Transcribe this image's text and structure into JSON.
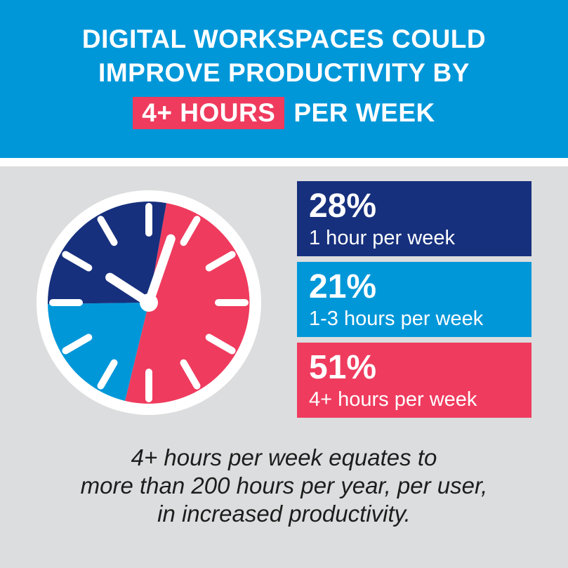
{
  "header": {
    "line1": "DIGITAL WORKSPACES COULD",
    "line2": "IMPROVE PRODUCTIVITY BY",
    "highlight": "4+ HOURS",
    "line3_rest": "PER WEEK"
  },
  "stats": [
    {
      "percent": "28%",
      "label": "1 hour per week",
      "color": "#16307d"
    },
    {
      "percent": "21%",
      "label": "1-3 hours per week",
      "color": "#0097d9"
    },
    {
      "percent": "51%",
      "label": "4+ hours per week",
      "color": "#ef3b5e"
    }
  ],
  "caption": {
    "line1": "4+ hours per week equates to",
    "line2": "more than 200 hours per year, per user,",
    "line3": "in increased productivity."
  },
  "colors": {
    "banner_blue": "#0097d9",
    "navy": "#16307d",
    "pink": "#ef3b5e",
    "background_gray": "#dcddde",
    "text_white": "#ffffff",
    "caption_text": "#1d1d1d"
  },
  "chart_data": {
    "type": "pie",
    "title": "Productivity hours gained per week with digital workspaces",
    "segments": [
      {
        "label": "1 hour per week",
        "value": 28,
        "color": "#16307d"
      },
      {
        "label": "1-3 hours per week",
        "value": 21,
        "color": "#0097d9"
      },
      {
        "label": "4+ hours per week",
        "value": 51,
        "color": "#ef3b5e"
      }
    ],
    "legend_position": "right",
    "style": "clock-face illustration: white ring, 12 white tick marks, white hour and minute hands"
  },
  "clock": {
    "start_angle_deg": 10,
    "draw_order_note": "segments drawn clockwise from 10deg in reverse list order: 51%, 21%, 28%",
    "hands": [
      {
        "name": "minute-hand",
        "angle_deg": 19,
        "length": 96
      },
      {
        "name": "hour-hand",
        "angle_deg": -57,
        "length": 66
      }
    ]
  }
}
